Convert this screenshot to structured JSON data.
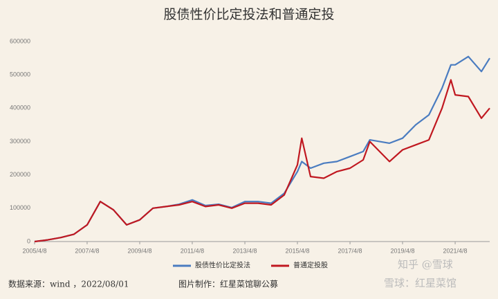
{
  "chart_data": {
    "type": "line",
    "title": "股债性价比定投法和普通定投",
    "x": [
      "2005/4/8",
      "2005/10/8",
      "2006/4/8",
      "2006/10/8",
      "2007/4/8",
      "2007/10/8",
      "2008/4/8",
      "2008/10/8",
      "2009/4/8",
      "2009/10/8",
      "2010/4/8",
      "2010/10/8",
      "2011/4/8",
      "2011/10/8",
      "2012/4/8",
      "2012/10/8",
      "2013/4/8",
      "2013/10/8",
      "2014/4/8",
      "2014/10/8",
      "2015/4/8",
      "2015/6/8",
      "2015/10/8",
      "2016/4/8",
      "2016/10/8",
      "2017/4/8",
      "2017/10/8",
      "2018/1/8",
      "2018/10/8",
      "2019/4/8",
      "2019/10/8",
      "2020/4/8",
      "2020/10/8",
      "2021/2/8",
      "2021/4/8",
      "2021/10/8",
      "2022/4/8",
      "2022/8/1"
    ],
    "series": [
      {
        "name": "股债性价比定投法",
        "color": "#4a7cc0",
        "values": [
          0,
          5000,
          12000,
          22000,
          50000,
          120000,
          95000,
          50000,
          65000,
          100000,
          105000,
          112000,
          125000,
          108000,
          112000,
          102000,
          120000,
          120000,
          115000,
          145000,
          210000,
          240000,
          220000,
          235000,
          240000,
          255000,
          270000,
          305000,
          295000,
          310000,
          350000,
          380000,
          460000,
          530000,
          530000,
          555000,
          510000,
          550000
        ]
      },
      {
        "name": "普通定投股",
        "color": "#c01820",
        "values": [
          0,
          5000,
          12000,
          22000,
          50000,
          120000,
          95000,
          50000,
          65000,
          100000,
          105000,
          110000,
          120000,
          105000,
          110000,
          100000,
          115000,
          115000,
          110000,
          140000,
          230000,
          310000,
          195000,
          190000,
          210000,
          220000,
          245000,
          300000,
          240000,
          275000,
          290000,
          305000,
          400000,
          485000,
          440000,
          435000,
          370000,
          400000
        ]
      }
    ],
    "xlim": [
      "2005/4/8",
      "2022/8/1"
    ],
    "xticks": [
      "2005/4/8",
      "2007/4/8",
      "2009/4/8",
      "2011/4/8",
      "2013/4/8",
      "2015/4/8",
      "2017/4/8",
      "2019/4/8",
      "2021/4/8"
    ],
    "ylim": [
      0,
      600000
    ],
    "yticks": [
      0,
      100000,
      200000,
      300000,
      400000,
      500000,
      600000
    ],
    "grid": false,
    "legend": "bottom",
    "source": "数据来源：wind ，2022/08/01",
    "credit": "图片制作：红星菜馆聊公募",
    "watermarks": [
      "知乎 @雪球",
      "雪球：红星菜馆"
    ]
  }
}
